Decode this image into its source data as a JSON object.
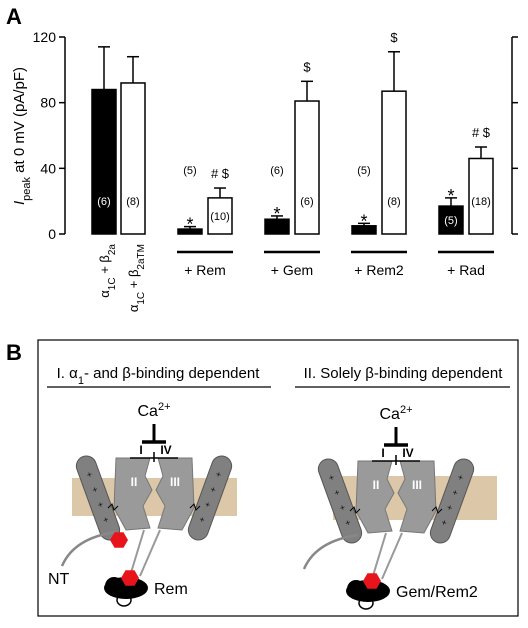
{
  "chart_data": {
    "type": "bar",
    "panel_label": "A",
    "y_label": {
      "symbol": "I",
      "subscript": "peak",
      "rest": " at 0 mV (pA/pF)"
    },
    "ylim": [
      0,
      120
    ],
    "yticks": [
      0,
      40,
      80,
      120
    ],
    "bars": [
      {
        "value": 88,
        "error": 26,
        "color": "#000000",
        "n_label": "(6)"
      },
      {
        "value": 92,
        "error": 16,
        "color": "#ffffff",
        "n_label": "(8)"
      },
      {
        "value": 3,
        "error": 1.5,
        "color": "#000000",
        "n_label": "(5)",
        "sig_label": "*"
      },
      {
        "value": 22,
        "error": 6,
        "color": "#ffffff",
        "n_label": "(10)",
        "sig_label": "# $"
      },
      {
        "value": 9,
        "error": 2,
        "color": "#000000",
        "n_label": "(6)",
        "sig_label": "*"
      },
      {
        "value": 81,
        "error": 12,
        "color": "#ffffff",
        "n_label": "(6)",
        "sig_label": "$"
      },
      {
        "value": 5,
        "error": 1.5,
        "color": "#000000",
        "n_label": "(5)",
        "sig_label": "*"
      },
      {
        "value": 87,
        "error": 24,
        "color": "#ffffff",
        "n_label": "(8)",
        "sig_label": "$"
      },
      {
        "value": 17,
        "error": 5,
        "color": "#000000",
        "n_label": "(5)",
        "sig_label": "*"
      },
      {
        "value": 46,
        "error": 7,
        "color": "#ffffff",
        "n_label": "(18)",
        "sig_label": "# $"
      }
    ],
    "control_labels": [
      {
        "parts": [
          "α",
          "1C",
          " + β",
          "2a"
        ]
      },
      {
        "parts": [
          "α",
          "1C",
          " + β",
          "2aTM"
        ]
      }
    ],
    "groups": [
      "+ Rem",
      "+ Gem",
      "+ Rem2",
      "+ Rad"
    ]
  },
  "diagram": {
    "panel_label": "B",
    "left": {
      "heading": [
        "I. α",
        "1",
        "- and β-binding dependent"
      ],
      "ion": [
        "Ca",
        "2+"
      ],
      "domains": [
        "I",
        "IV",
        "II",
        "III"
      ],
      "nt": "NT",
      "protein": "Rem"
    },
    "right": {
      "heading": [
        "II. Solely β-binding dependent"
      ],
      "ion": [
        "Ca",
        "2+"
      ],
      "domains": [
        "I",
        "IV",
        "II",
        "III"
      ],
      "protein": "Gem/Rem2"
    }
  }
}
